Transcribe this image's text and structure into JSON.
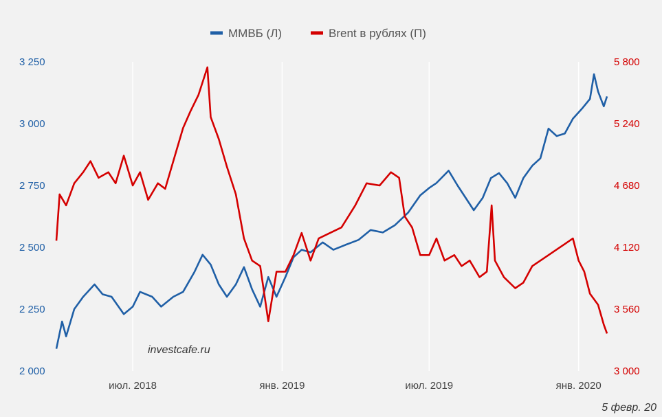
{
  "chart_data": {
    "type": "line",
    "legend": {
      "position": "top-center",
      "items": [
        {
          "label": "ММВБ (Л)",
          "color": "#1f5fa6"
        },
        {
          "label": "Brent в рублях (П)",
          "color": "#d40000"
        }
      ]
    },
    "grid": true,
    "x_ticks": [
      {
        "label": "июл. 2018",
        "date": "2018-07-01"
      },
      {
        "label": "янв. 2019",
        "date": "2019-01-01"
      },
      {
        "label": "июл. 2019",
        "date": "2019-07-01"
      },
      {
        "label": "янв. 2020",
        "date": "2020-01-01"
      }
    ],
    "xlim": [
      "2018-03-29",
      "2020-02-05"
    ],
    "y_left": {
      "min": 2000,
      "max": 3250,
      "color": "#1f5fa6",
      "ticks": [
        "2 000",
        "2 250",
        "2 500",
        "2 750",
        "3 000",
        "3 250"
      ],
      "tick_values": [
        2000,
        2250,
        2500,
        2750,
        3000,
        3250
      ]
    },
    "y_right": {
      "min": 3000,
      "max": 5800,
      "color": "#d40000",
      "ticks": [
        "3 000",
        "3 560",
        "4 120",
        "4 680",
        "5 240",
        "5 800"
      ],
      "tick_values": [
        3000,
        3560,
        4120,
        4680,
        5240,
        5800
      ]
    },
    "series": [
      {
        "name": "ММВБ (Л)",
        "axis": "left",
        "color": "#1f5fa6",
        "x": [
          "2018-03-29",
          "2018-04-05",
          "2018-04-10",
          "2018-04-20",
          "2018-05-01",
          "2018-05-15",
          "2018-05-25",
          "2018-06-05",
          "2018-06-20",
          "2018-07-01",
          "2018-07-10",
          "2018-07-25",
          "2018-08-05",
          "2018-08-20",
          "2018-09-01",
          "2018-09-15",
          "2018-09-25",
          "2018-10-05",
          "2018-10-15",
          "2018-10-25",
          "2018-11-05",
          "2018-11-15",
          "2018-11-25",
          "2018-12-05",
          "2018-12-15",
          "2018-12-25",
          "2019-01-05",
          "2019-01-15",
          "2019-01-25",
          "2019-02-05",
          "2019-02-20",
          "2019-03-05",
          "2019-03-20",
          "2019-04-05",
          "2019-04-20",
          "2019-05-05",
          "2019-05-20",
          "2019-06-05",
          "2019-06-20",
          "2019-07-01",
          "2019-07-10",
          "2019-07-25",
          "2019-08-05",
          "2019-08-15",
          "2019-08-25",
          "2019-09-05",
          "2019-09-15",
          "2019-09-25",
          "2019-10-05",
          "2019-10-15",
          "2019-10-25",
          "2019-11-05",
          "2019-11-15",
          "2019-11-25",
          "2019-12-05",
          "2019-12-15",
          "2019-12-25",
          "2020-01-05",
          "2020-01-15",
          "2020-01-20",
          "2020-01-25",
          "2020-02-01",
          "2020-02-05"
        ],
        "y": [
          2090,
          2200,
          2140,
          2250,
          2300,
          2350,
          2310,
          2300,
          2230,
          2260,
          2320,
          2300,
          2260,
          2300,
          2320,
          2400,
          2470,
          2430,
          2350,
          2300,
          2350,
          2420,
          2330,
          2260,
          2380,
          2300,
          2380,
          2460,
          2490,
          2480,
          2520,
          2490,
          2510,
          2530,
          2570,
          2560,
          2590,
          2640,
          2710,
          2740,
          2760,
          2810,
          2750,
          2700,
          2650,
          2700,
          2780,
          2800,
          2760,
          2700,
          2780,
          2830,
          2860,
          2980,
          2950,
          2960,
          3020,
          3060,
          3100,
          3200,
          3130,
          3070,
          3110
        ]
      },
      {
        "name": "Brent в рублях (П)",
        "axis": "right",
        "color": "#d40000",
        "x": [
          "2018-03-29",
          "2018-04-02",
          "2018-04-10",
          "2018-04-20",
          "2018-05-01",
          "2018-05-10",
          "2018-05-20",
          "2018-06-01",
          "2018-06-10",
          "2018-06-20",
          "2018-07-01",
          "2018-07-10",
          "2018-07-20",
          "2018-08-01",
          "2018-08-10",
          "2018-08-20",
          "2018-09-01",
          "2018-09-10",
          "2018-09-20",
          "2018-10-01",
          "2018-10-05",
          "2018-10-15",
          "2018-10-25",
          "2018-11-05",
          "2018-11-15",
          "2018-11-25",
          "2018-12-05",
          "2018-12-15",
          "2018-12-25",
          "2019-01-05",
          "2019-01-15",
          "2019-01-25",
          "2019-02-05",
          "2019-02-15",
          "2019-03-01",
          "2019-03-15",
          "2019-04-01",
          "2019-04-15",
          "2019-05-01",
          "2019-05-15",
          "2019-05-25",
          "2019-06-01",
          "2019-06-10",
          "2019-06-20",
          "2019-07-01",
          "2019-07-10",
          "2019-07-20",
          "2019-08-01",
          "2019-08-10",
          "2019-08-20",
          "2019-09-01",
          "2019-09-10",
          "2019-09-16",
          "2019-09-20",
          "2019-10-01",
          "2019-10-15",
          "2019-10-25",
          "2019-11-05",
          "2019-11-15",
          "2019-11-25",
          "2019-12-05",
          "2019-12-15",
          "2019-12-25",
          "2020-01-01",
          "2020-01-08",
          "2020-01-15",
          "2020-01-25",
          "2020-02-01",
          "2020-02-05"
        ],
        "y": [
          4180,
          4600,
          4500,
          4700,
          4800,
          4900,
          4750,
          4800,
          4700,
          4950,
          4680,
          4800,
          4550,
          4700,
          4650,
          4900,
          5200,
          5350,
          5500,
          5750,
          5300,
          5100,
          4850,
          4600,
          4200,
          4000,
          3950,
          3450,
          3900,
          3900,
          4050,
          4250,
          4000,
          4200,
          4250,
          4300,
          4500,
          4700,
          4680,
          4800,
          4750,
          4400,
          4300,
          4050,
          4050,
          4200,
          4000,
          4050,
          3950,
          4000,
          3850,
          3900,
          4500,
          4000,
          3850,
          3750,
          3800,
          3950,
          4000,
          4050,
          4100,
          4150,
          4200,
          4000,
          3900,
          3700,
          3600,
          3420,
          3340
        ]
      }
    ]
  },
  "watermark": "investcafe.ru",
  "date_note": "5 февр. 20"
}
